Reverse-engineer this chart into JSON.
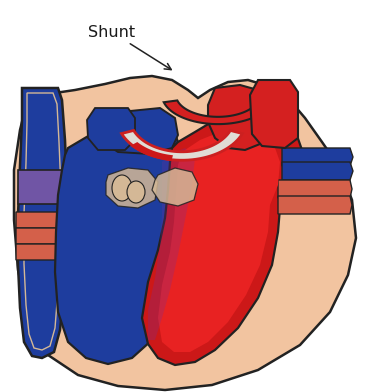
{
  "shunt_label": "Shunt",
  "background_color": "#ffffff",
  "skin_color": "#f2c4a0",
  "skin_dark": "#e8b090",
  "dark_outline": "#222222",
  "blue_vessel": "#1e3d9e",
  "blue_light": "#2a50cc",
  "red_vessel": "#cc1818",
  "red_bright": "#e82222",
  "red_aorta": "#d42020",
  "purple_vessel": "#7055a5",
  "salmon_vessel": "#d4604a",
  "shunt_color": "#e0ddd5",
  "shunt_red_highlight": "#cc2020",
  "tan_inner": "#d4b896",
  "figsize": [
    3.65,
    3.92
  ],
  "dpi": 100
}
